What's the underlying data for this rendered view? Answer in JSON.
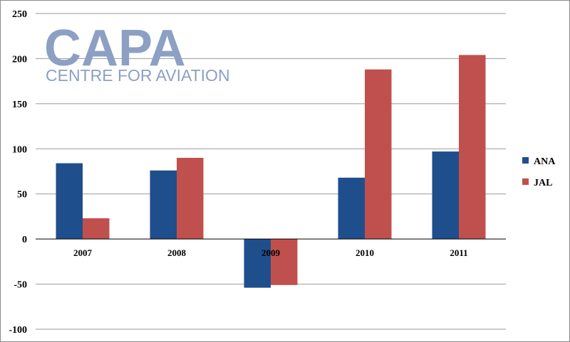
{
  "watermark": {
    "logo": "CAPA",
    "tagline": "CENTRE FOR AVIATION"
  },
  "colors": {
    "ANA": "#1f4e8c",
    "JAL": "#c0504d",
    "grid": "#9a9a9a",
    "axis": "#000000"
  },
  "chart_data": {
    "type": "bar",
    "title": "",
    "xlabel": "",
    "ylabel": "",
    "categories": [
      "2007",
      "2008",
      "2009",
      "2010",
      "2011"
    ],
    "series": [
      {
        "name": "ANA",
        "values": [
          84,
          76,
          -54,
          68,
          97
        ]
      },
      {
        "name": "JAL",
        "values": [
          23,
          90,
          -51,
          188,
          204
        ]
      }
    ],
    "ylim": [
      -100,
      250
    ],
    "yticks": [
      "250",
      "200",
      "150",
      "100",
      "50",
      "0",
      "-50",
      "-100"
    ],
    "grid": true,
    "legend_position": "right"
  }
}
